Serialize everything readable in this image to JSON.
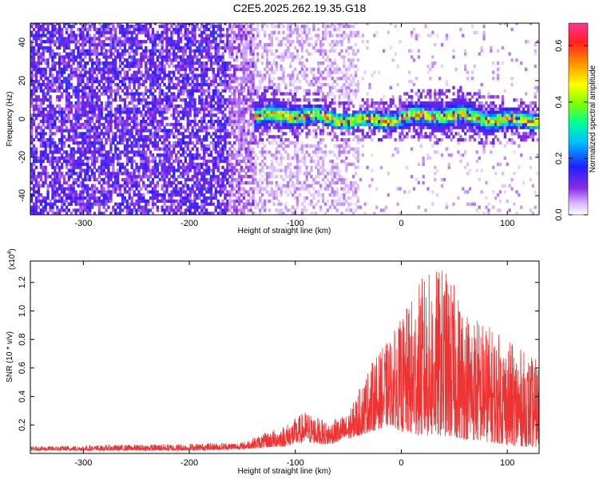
{
  "title": "C2E5.2025.262.19.35.G18",
  "chart_data": [
    {
      "type": "heatmap",
      "title": "C2E5.2025.262.19.35.G18",
      "xlabel": "Height of straight line (km)",
      "ylabel": "Frequency (Hz)",
      "xlim": [
        -350,
        130
      ],
      "ylim": [
        -50,
        50
      ],
      "xticks": [
        -300,
        -200,
        -100,
        0,
        100
      ],
      "yticks": [
        -40,
        -20,
        0,
        20,
        40
      ],
      "x_tick_labels": [
        "-300",
        "-200",
        "-100",
        "0",
        "100"
      ],
      "y_tick_labels": [
        "-40",
        "-20",
        "0",
        "20",
        "40"
      ],
      "colorbar": {
        "label": "Normalized spectral amplitude",
        "range": [
          0.0,
          0.68
        ],
        "ticks": [
          0.0,
          0.2,
          0.4,
          0.6
        ],
        "tick_labels": [
          "0.0",
          "0.2",
          "0.4",
          "0.6"
        ]
      },
      "signal_band": {
        "x_start": -140,
        "x_end": 130,
        "center_freq": 0,
        "half_width_hz": 6,
        "peak_amplitude": 0.62
      }
    },
    {
      "type": "area",
      "xlabel": "Height of straight line (km)",
      "ylabel": "SNR (10 * v/v)",
      "y_scale_label": "(x10",
      "y_scale_exponent": "4",
      "xlim": [
        -350,
        130
      ],
      "ylim": [
        0.0,
        1.35
      ],
      "xticks": [
        -300,
        -200,
        -100,
        0,
        100
      ],
      "yticks": [
        0.2,
        0.4,
        0.6,
        0.8,
        1.0,
        1.2
      ],
      "x_tick_labels": [
        "-300",
        "-200",
        "-100",
        "0",
        "100"
      ],
      "y_tick_labels": [
        "0.2",
        "0.4",
        "0.6",
        "0.8",
        "1.0",
        "1.2"
      ],
      "color": "#ee3333",
      "envelope": {
        "x": [
          -350,
          -200,
          -150,
          -110,
          -90,
          -70,
          -50,
          -30,
          -10,
          0,
          20,
          40,
          60,
          80,
          100,
          130
        ],
        "max": [
          0.05,
          0.07,
          0.08,
          0.2,
          0.3,
          0.22,
          0.28,
          0.62,
          0.82,
          0.95,
          1.25,
          1.32,
          1.05,
          0.92,
          0.8,
          0.65
        ],
        "min": [
          0.02,
          0.02,
          0.03,
          0.05,
          0.08,
          0.06,
          0.1,
          0.15,
          0.2,
          0.15,
          0.12,
          0.12,
          0.1,
          0.08,
          0.06,
          0.04
        ]
      }
    }
  ]
}
